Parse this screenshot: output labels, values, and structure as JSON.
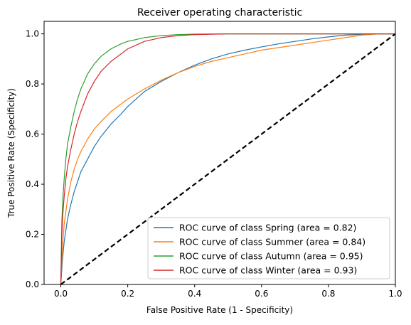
{
  "chart_data": {
    "type": "line",
    "title": "Receiver operating characteristic",
    "xlabel": "False Positive Rate (1 - Specificity)",
    "ylabel": "True Positive Rate (Specificity)",
    "xlim": [
      -0.05,
      1.0
    ],
    "ylim": [
      0.0,
      1.05
    ],
    "x_ticks": [
      "0.0",
      "0.2",
      "0.4",
      "0.6",
      "0.8",
      "1.0"
    ],
    "y_ticks": [
      "0.0",
      "0.2",
      "0.4",
      "0.6",
      "0.8",
      "1.0"
    ],
    "grid": false,
    "legend_position": "lower-right",
    "diagonal": {
      "x": [
        0,
        1
      ],
      "y": [
        0,
        1
      ],
      "color": "#000000",
      "style": "dashed"
    },
    "series": [
      {
        "name": "ROC curve of class Spring (area = 0.82)",
        "color": "#1f77b4",
        "x": [
          0,
          0.005,
          0.01,
          0.02,
          0.03,
          0.04,
          0.05,
          0.06,
          0.08,
          0.1,
          0.12,
          0.15,
          0.18,
          0.2,
          0.25,
          0.3,
          0.35,
          0.4,
          0.45,
          0.5,
          0.55,
          0.6,
          0.65,
          0.7,
          0.75,
          0.8,
          0.85,
          0.9,
          0.95,
          1.0
        ],
        "y": [
          0,
          0.1,
          0.17,
          0.26,
          0.32,
          0.37,
          0.41,
          0.45,
          0.5,
          0.55,
          0.59,
          0.64,
          0.68,
          0.71,
          0.77,
          0.81,
          0.845,
          0.875,
          0.9,
          0.92,
          0.935,
          0.948,
          0.96,
          0.97,
          0.98,
          0.988,
          0.995,
          0.998,
          1.0,
          1.0
        ]
      },
      {
        "name": "ROC curve of class Summer (area = 0.84)",
        "color": "#ff7f0e",
        "x": [
          0,
          0.005,
          0.01,
          0.02,
          0.03,
          0.04,
          0.05,
          0.06,
          0.08,
          0.1,
          0.12,
          0.15,
          0.18,
          0.2,
          0.25,
          0.3,
          0.35,
          0.4,
          0.45,
          0.5,
          0.55,
          0.6,
          0.65,
          0.7,
          0.75,
          0.8,
          0.85,
          0.9,
          0.95,
          1.0
        ],
        "y": [
          0,
          0.15,
          0.24,
          0.34,
          0.41,
          0.46,
          0.5,
          0.53,
          0.58,
          0.62,
          0.65,
          0.69,
          0.72,
          0.74,
          0.78,
          0.815,
          0.845,
          0.87,
          0.89,
          0.905,
          0.92,
          0.935,
          0.945,
          0.955,
          0.965,
          0.975,
          0.985,
          0.995,
          1.0,
          1.0
        ]
      },
      {
        "name": "ROC curve of class Autumn (area = 0.95)",
        "color": "#2ca02c",
        "x": [
          0,
          0.003,
          0.006,
          0.01,
          0.015,
          0.02,
          0.03,
          0.04,
          0.05,
          0.06,
          0.08,
          0.1,
          0.12,
          0.15,
          0.18,
          0.2,
          0.25,
          0.3,
          0.35,
          0.4,
          0.5,
          0.6,
          0.7,
          0.8,
          0.9,
          1.0
        ],
        "y": [
          0,
          0.25,
          0.34,
          0.42,
          0.5,
          0.56,
          0.63,
          0.69,
          0.74,
          0.78,
          0.84,
          0.88,
          0.91,
          0.94,
          0.96,
          0.97,
          0.985,
          0.993,
          0.997,
          0.999,
          1.0,
          1.0,
          1.0,
          1.0,
          1.0,
          1.0
        ]
      },
      {
        "name": "ROC curve of class Winter (area = 0.93)",
        "color": "#d62728",
        "x": [
          0,
          0.003,
          0.006,
          0.01,
          0.015,
          0.02,
          0.03,
          0.04,
          0.05,
          0.06,
          0.08,
          0.1,
          0.12,
          0.15,
          0.18,
          0.2,
          0.25,
          0.3,
          0.35,
          0.4,
          0.5,
          0.6,
          0.7,
          0.8,
          0.9,
          1.0
        ],
        "y": [
          0,
          0.2,
          0.28,
          0.35,
          0.42,
          0.47,
          0.54,
          0.6,
          0.65,
          0.69,
          0.76,
          0.81,
          0.85,
          0.89,
          0.92,
          0.94,
          0.97,
          0.985,
          0.993,
          0.997,
          1.0,
          1.0,
          1.0,
          1.0,
          1.0,
          1.0
        ]
      }
    ]
  }
}
